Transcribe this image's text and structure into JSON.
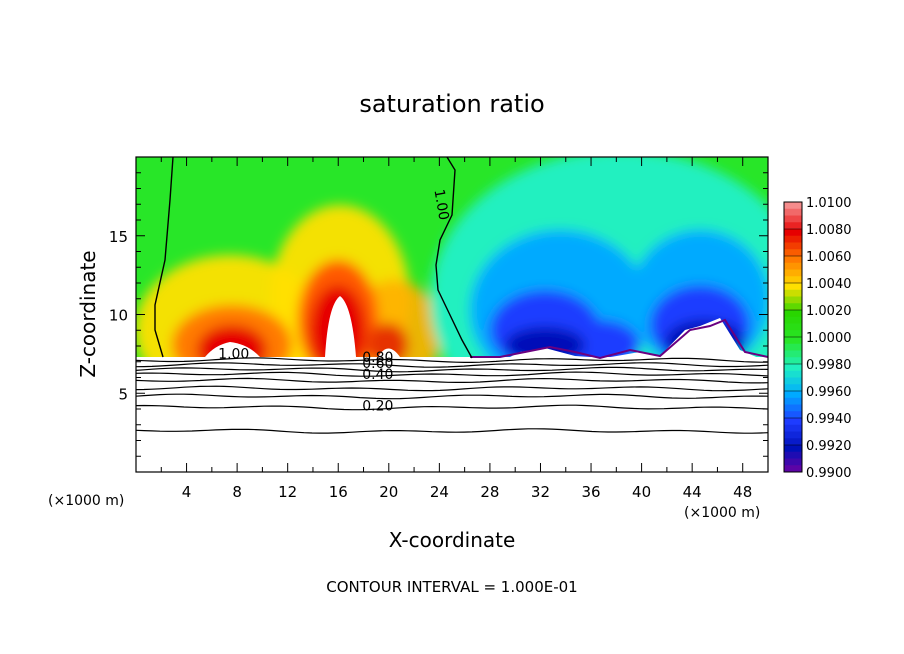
{
  "chart_data": {
    "type": "heatmap",
    "title": "saturation ratio",
    "xlabel": "X-coordinate",
    "ylabel": "Z-coordinate",
    "x_unit_left": "(×1000 m)",
    "x_unit_right": "(×1000 m)",
    "xlim": [
      0,
      50
    ],
    "ylim": [
      0,
      20
    ],
    "xticks": [
      4,
      8,
      12,
      16,
      20,
      24,
      28,
      32,
      36,
      40,
      44,
      48
    ],
    "xtick_labels": [
      "4",
      "8",
      "12",
      "16",
      "20",
      "24",
      "28",
      "32",
      "36",
      "40",
      "44",
      "48"
    ],
    "yticks": [
      5,
      10,
      15
    ],
    "ytick_labels": [
      "5",
      "10",
      "15"
    ],
    "footer": "CONTOUR INTERVAL = 1.000E-01",
    "colorbar": {
      "levels": [
        "1.0100",
        "1.0080",
        "1.0060",
        "1.0040",
        "1.0020",
        "1.0000",
        "0.9980",
        "0.9960",
        "0.9940",
        "0.9920",
        "0.9900"
      ],
      "colors": [
        "#f58c8c",
        "#e60000",
        "#ff7a00",
        "#ffe000",
        "#29d600",
        "#28e628",
        "#20f0c0",
        "#00aaff",
        "#1e3cff",
        "#0010b8",
        "#7a00a0"
      ]
    },
    "contour_labels": [
      {
        "text": "1.00",
        "x": 23.6,
        "z": 17.9
      },
      {
        "text": "1.00",
        "x": 6.5,
        "z": 7.2
      },
      {
        "text": "0.80",
        "x": 17.9,
        "z": 7.0
      },
      {
        "text": "0.60",
        "x": 17.9,
        "z": 6.6
      },
      {
        "text": "0.40",
        "x": 17.9,
        "z": 5.9
      },
      {
        "text": "0.20",
        "x": 17.9,
        "z": 3.9
      }
    ],
    "contour_lines_z": [
      7.1,
      6.8,
      6.5,
      6.2,
      5.8,
      5.3,
      4.8,
      4.1,
      2.6
    ]
  }
}
